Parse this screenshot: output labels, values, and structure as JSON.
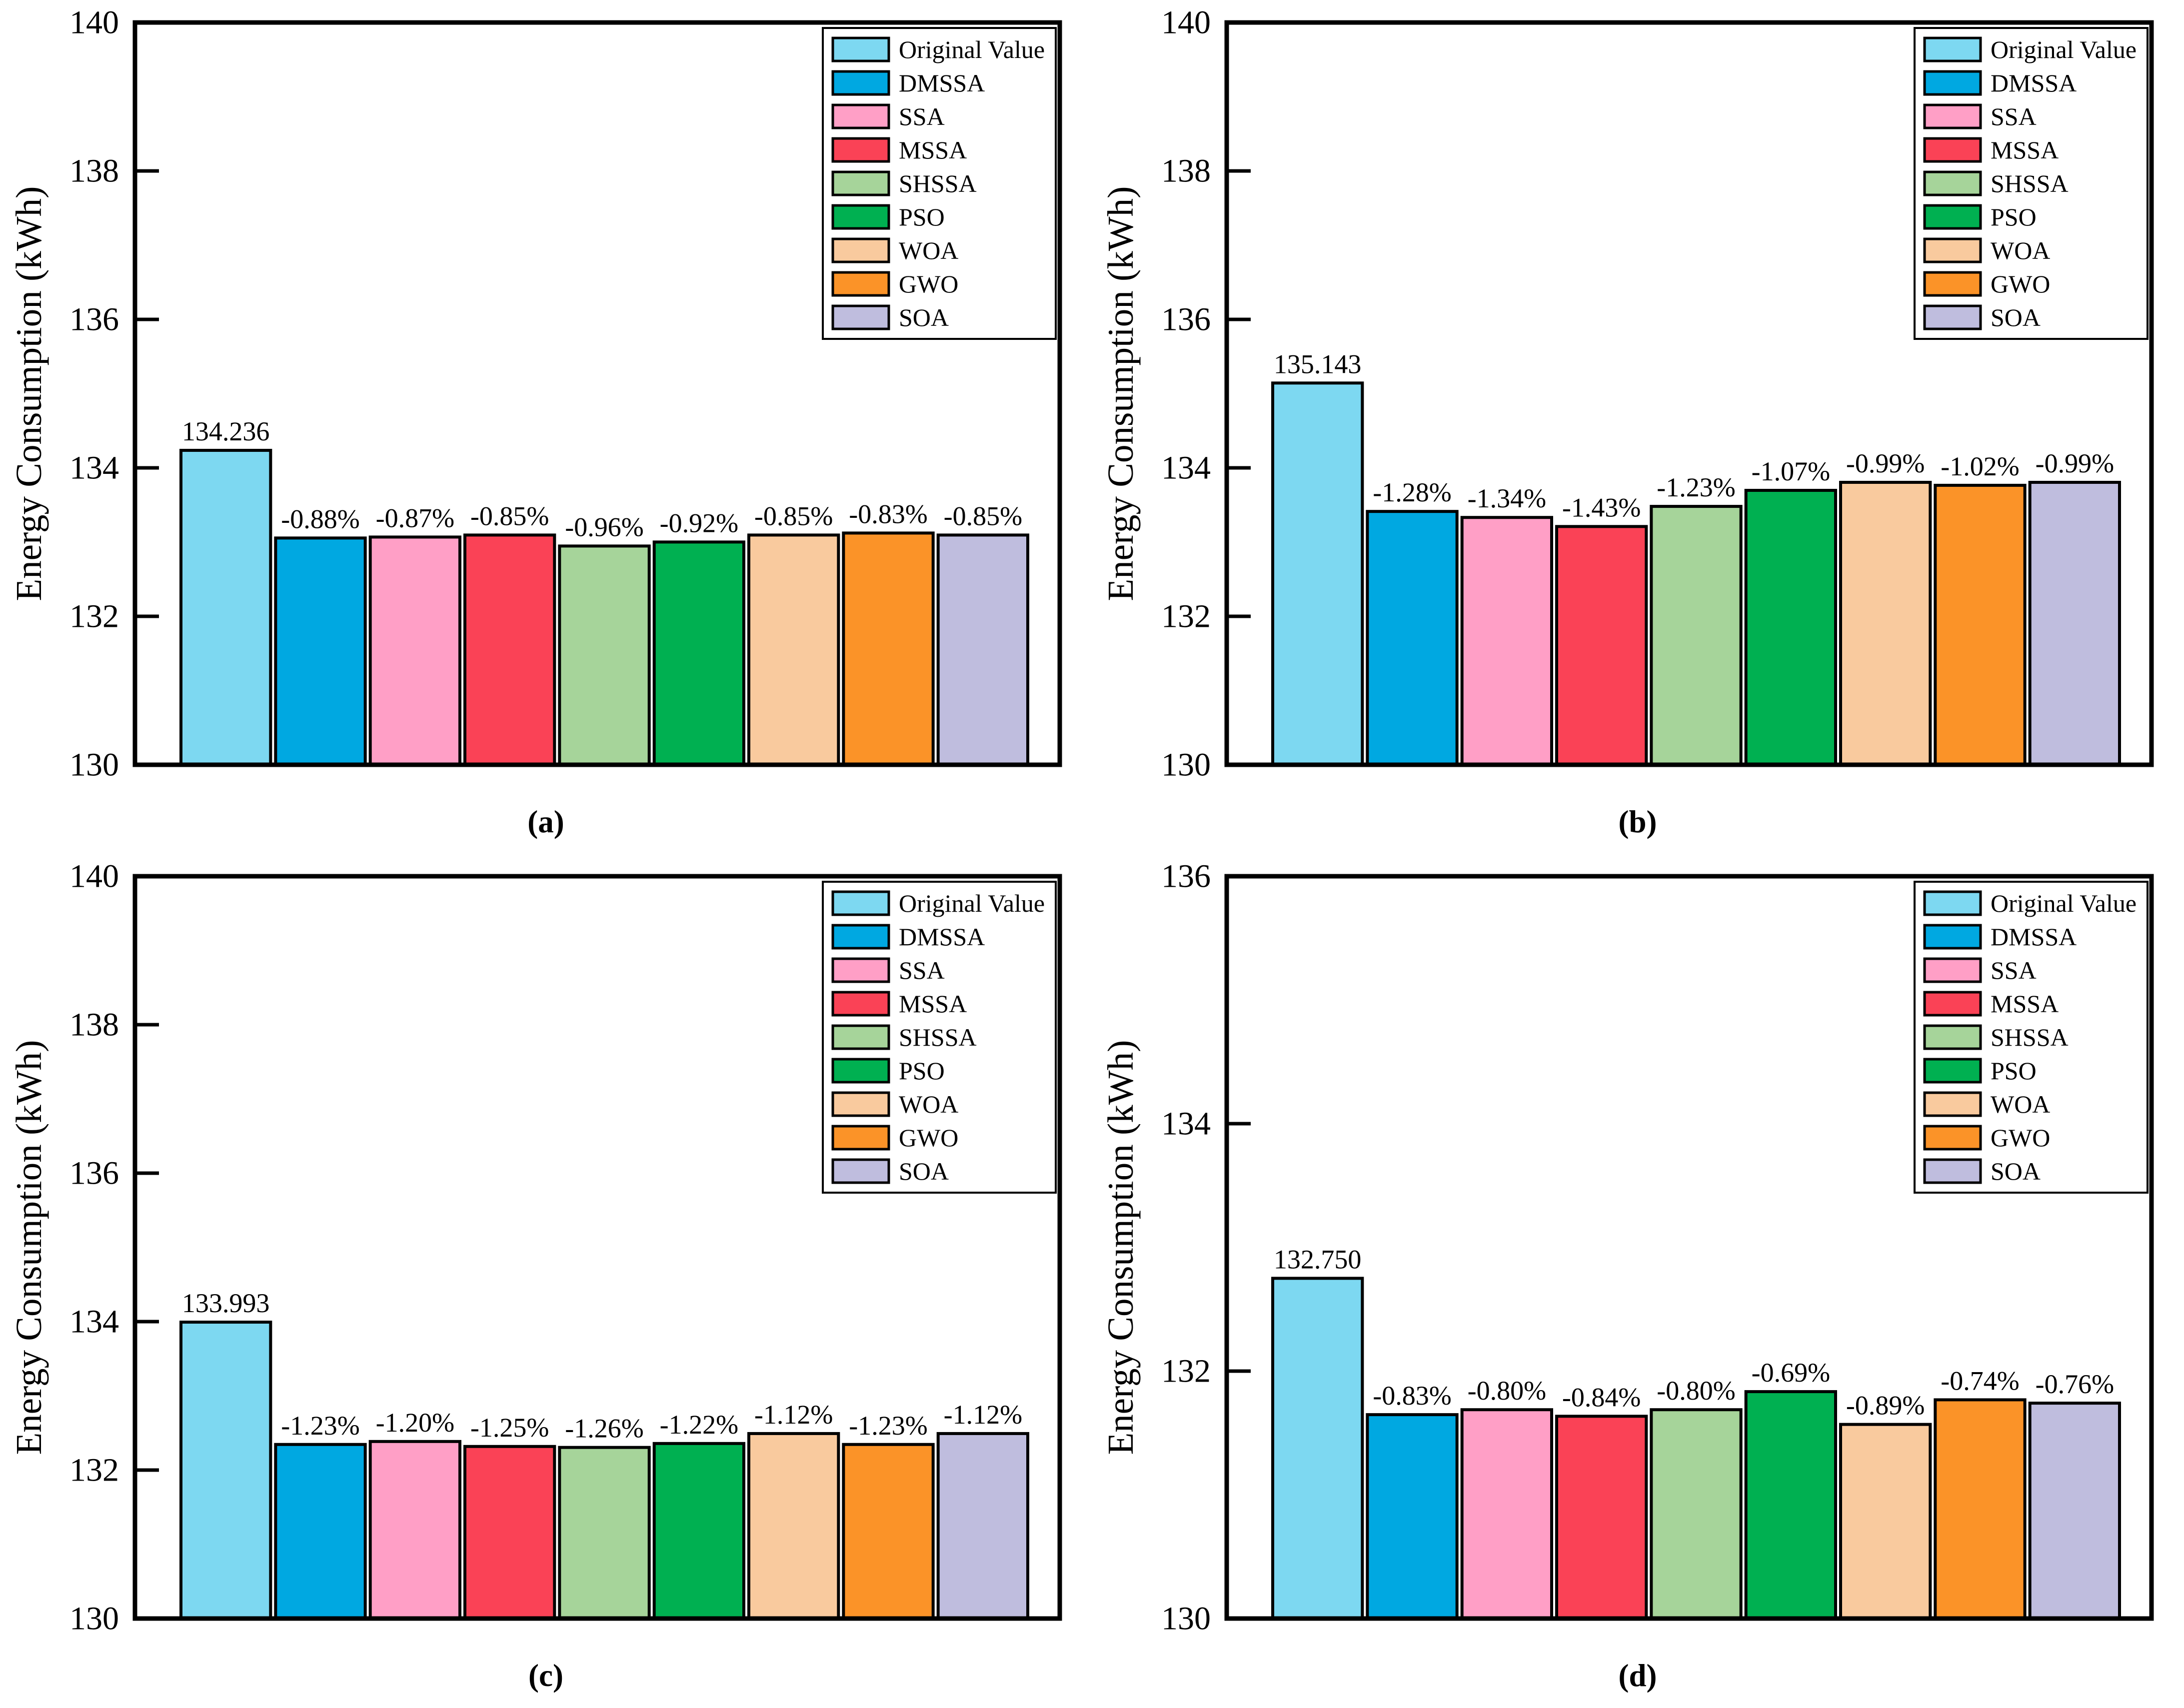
{
  "figure": {
    "background": "#ffffff",
    "ylabel": "Energy Consumption (kWh)",
    "legend": {
      "position": "upper right",
      "labels": [
        "Original Value",
        "DMSSA",
        "SSA",
        "MSSA",
        "SHSSA",
        "PSO",
        "WOA",
        "GWO",
        "SOA"
      ]
    },
    "colors": {
      "original_value": "#7DD8F1",
      "dmssa": "#00A8E1",
      "ssa": "#FF9FC6",
      "mssa": "#FA4256",
      "shssa": "#A6D49A",
      "pso": "#00B051",
      "woa": "#F9CA9E",
      "gwo": "#FB9328",
      "soa": "#BFBDDE",
      "outline": "#000000"
    }
  },
  "chart_data": [
    {
      "id": "a",
      "type": "bar",
      "caption": "(a)",
      "ylabel": "Energy Consumption (kWh)",
      "ylim": [
        130,
        140
      ],
      "yticks": [
        130,
        132,
        134,
        136,
        138,
        140
      ],
      "grid": false,
      "legend_position": "upper right",
      "categories": [
        "Original Value",
        "DMSSA",
        "SSA",
        "MSSA",
        "SHSSA",
        "PSO",
        "WOA",
        "GWO",
        "SOA"
      ],
      "colors": [
        "#7DD8F1",
        "#00A8E1",
        "#FF9FC6",
        "#FA4256",
        "#A6D49A",
        "#00B051",
        "#F9CA9E",
        "#FB9328",
        "#BFBDDE"
      ],
      "values": [
        134.236,
        133.055,
        133.068,
        133.095,
        132.947,
        133.001,
        133.095,
        133.122,
        133.095
      ],
      "bar_labels": [
        "134.236",
        "-0.88%",
        "-0.87%",
        "-0.85%",
        "-0.96%",
        "-0.92%",
        "-0.85%",
        "-0.83%",
        "-0.85%"
      ]
    },
    {
      "id": "b",
      "type": "bar",
      "caption": "(b)",
      "ylabel": "Energy Consumption (kWh)",
      "ylim": [
        130,
        140
      ],
      "yticks": [
        130,
        132,
        134,
        136,
        138,
        140
      ],
      "grid": false,
      "legend_position": "upper right",
      "categories": [
        "Original Value",
        "DMSSA",
        "SSA",
        "MSSA",
        "SHSSA",
        "PSO",
        "WOA",
        "GWO",
        "SOA"
      ],
      "colors": [
        "#7DD8F1",
        "#00A8E1",
        "#FF9FC6",
        "#FA4256",
        "#A6D49A",
        "#00B051",
        "#F9CA9E",
        "#FB9328",
        "#BFBDDE"
      ],
      "values": [
        135.143,
        133.413,
        133.332,
        133.21,
        133.481,
        133.697,
        133.805,
        133.765,
        133.805
      ],
      "bar_labels": [
        "135.143",
        "-1.28%",
        "-1.34%",
        "-1.43%",
        "-1.23%",
        "-1.07%",
        "-0.99%",
        "-1.02%",
        "-0.99%"
      ]
    },
    {
      "id": "c",
      "type": "bar",
      "caption": "(c)",
      "ylabel": "Energy Consumption (kWh)",
      "ylim": [
        130,
        140
      ],
      "yticks": [
        130,
        132,
        134,
        136,
        138,
        140
      ],
      "grid": false,
      "legend_position": "upper right",
      "categories": [
        "Original Value",
        "DMSSA",
        "SSA",
        "MSSA",
        "SHSSA",
        "PSO",
        "WOA",
        "GWO",
        "SOA"
      ],
      "colors": [
        "#7DD8F1",
        "#00A8E1",
        "#FF9FC6",
        "#FA4256",
        "#A6D49A",
        "#00B051",
        "#F9CA9E",
        "#FB9328",
        "#BFBDDE"
      ],
      "values": [
        133.993,
        132.345,
        132.385,
        132.318,
        132.305,
        132.358,
        132.492,
        132.345,
        132.492
      ],
      "bar_labels": [
        "133.993",
        "-1.23%",
        "-1.20%",
        "-1.25%",
        "-1.26%",
        "-1.22%",
        "-1.12%",
        "-1.23%",
        "-1.12%"
      ]
    },
    {
      "id": "d",
      "type": "bar",
      "caption": "(d)",
      "ylabel": "Energy Consumption (kWh)",
      "ylim": [
        130,
        136
      ],
      "yticks": [
        130,
        132,
        134,
        136
      ],
      "grid": false,
      "legend_position": "upper right",
      "categories": [
        "Original Value",
        "DMSSA",
        "SSA",
        "MSSA",
        "SHSSA",
        "PSO",
        "WOA",
        "GWO",
        "SOA"
      ],
      "colors": [
        "#7DD8F1",
        "#00A8E1",
        "#FF9FC6",
        "#FA4256",
        "#A6D49A",
        "#00B051",
        "#F9CA9E",
        "#FB9328",
        "#BFBDDE"
      ],
      "values": [
        132.75,
        131.648,
        131.688,
        131.635,
        131.688,
        131.834,
        131.569,
        131.768,
        131.741
      ],
      "bar_labels": [
        "132.750",
        "-0.83%",
        "-0.80%",
        "-0.84%",
        "-0.80%",
        "-0.69%",
        "-0.89%",
        "-0.74%",
        "-0.76%"
      ]
    }
  ]
}
